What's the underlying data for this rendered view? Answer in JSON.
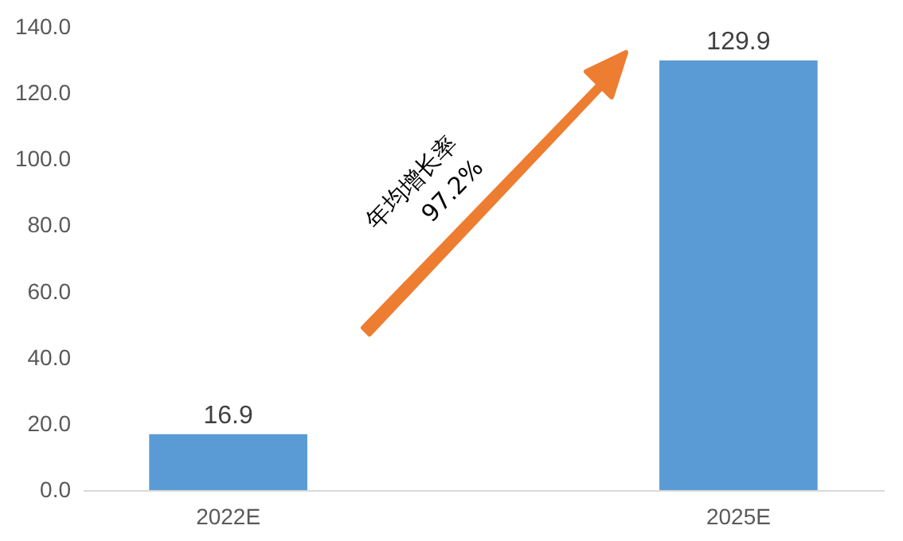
{
  "chart_data": {
    "type": "bar",
    "categories": [
      "2022E",
      "2025E"
    ],
    "values": [
      16.9,
      129.9
    ],
    "color": "#5b9bd5",
    "ylim": [
      0,
      140
    ],
    "yticks": [
      {
        "value": 0,
        "label": "0.0"
      },
      {
        "value": 20,
        "label": "20.0"
      },
      {
        "value": 40,
        "label": "40.0"
      },
      {
        "value": 60,
        "label": "60.0"
      },
      {
        "value": 80,
        "label": "80.0"
      },
      {
        "value": 100,
        "label": "100.0"
      },
      {
        "value": 120,
        "label": "120.0"
      },
      {
        "value": 140,
        "label": "140.0"
      }
    ],
    "data_labels": true,
    "grid": false,
    "annotations": [
      "年均增长率 97.2%"
    ]
  }
}
